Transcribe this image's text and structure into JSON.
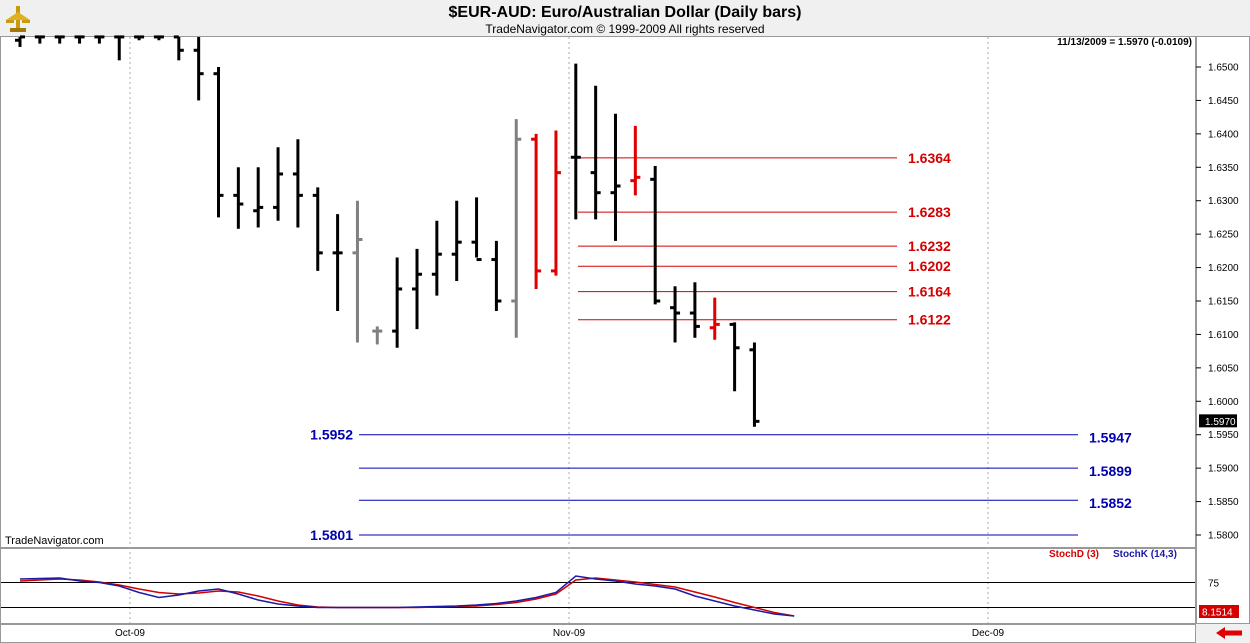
{
  "header": {
    "title": "$EUR-AUD:  Euro/Australian Dollar  (Daily bars)",
    "subtitle": "TradeNavigator.com © 1999-2009 All rights reserved",
    "last_info": "11/13/2009 = 1.5970 (-0.0109)",
    "footer": "TradeNavigator.com"
  },
  "stoch": {
    "d_label": "StochD (3)",
    "k_label": "StochK (14,3)",
    "level_label": "75",
    "last_value": "8.1514",
    "d_color": "#d40000",
    "k_color": "#1a1aa6"
  },
  "colors": {
    "bar_up": "#000000",
    "bar_neutral": "#808080",
    "bar_signal": "#e00000",
    "resistance": "#d40000",
    "support": "#0000b0"
  },
  "chart_data": {
    "type": "ohlc",
    "title": "$EUR-AUD:  Euro/Australian Dollar  (Daily bars)",
    "ylim": [
      1.5765,
      1.6572
    ],
    "y_ticks": [
      "1.6500",
      "1.6450",
      "1.6400",
      "1.6350",
      "1.6300",
      "1.6250",
      "1.6200",
      "1.6150",
      "1.6100",
      "1.6050",
      "1.6000",
      "1.5950",
      "1.5900",
      "1.5850",
      "1.5800"
    ],
    "x_ticks": [
      "Oct-09",
      "Nov-09",
      "Dec-09"
    ],
    "last_price": "1.5970",
    "bars": [
      {
        "i": 0,
        "o": 1.654,
        "h": 1.655,
        "l": 1.653,
        "c": 1.6545,
        "color": "bar_up"
      },
      {
        "i": 1,
        "o": 1.6545,
        "h": 1.6555,
        "l": 1.6535,
        "c": 1.6545,
        "color": "bar_up"
      },
      {
        "i": 2,
        "o": 1.6545,
        "h": 1.6555,
        "l": 1.6535,
        "c": 1.6545,
        "color": "bar_up"
      },
      {
        "i": 3,
        "o": 1.6545,
        "h": 1.6555,
        "l": 1.6535,
        "c": 1.6545,
        "color": "bar_up"
      },
      {
        "i": 4,
        "o": 1.6545,
        "h": 1.6555,
        "l": 1.6535,
        "c": 1.6545,
        "color": "bar_up"
      },
      {
        "i": 5,
        "o": 1.6545,
        "h": 1.656,
        "l": 1.651,
        "c": 1.6545,
        "color": "bar_up"
      },
      {
        "i": 6,
        "o": 1.6545,
        "h": 1.656,
        "l": 1.654,
        "c": 1.6545,
        "color": "bar_up"
      },
      {
        "i": 7,
        "o": 1.6545,
        "h": 1.656,
        "l": 1.654,
        "c": 1.6545,
        "color": "bar_up"
      },
      {
        "i": 8,
        "o": 1.6545,
        "h": 1.656,
        "l": 1.651,
        "c": 1.6525,
        "color": "bar_up"
      },
      {
        "i": 9,
        "o": 1.6525,
        "h": 1.6545,
        "l": 1.645,
        "c": 1.649,
        "color": "bar_up"
      },
      {
        "i": 10,
        "o": 1.649,
        "h": 1.65,
        "l": 1.6275,
        "c": 1.6308,
        "color": "bar_up"
      },
      {
        "i": 11,
        "o": 1.6308,
        "h": 1.635,
        "l": 1.6258,
        "c": 1.6295,
        "color": "bar_up"
      },
      {
        "i": 12,
        "o": 1.6285,
        "h": 1.635,
        "l": 1.626,
        "c": 1.629,
        "color": "bar_up"
      },
      {
        "i": 13,
        "o": 1.629,
        "h": 1.638,
        "l": 1.627,
        "c": 1.634,
        "color": "bar_up"
      },
      {
        "i": 14,
        "o": 1.634,
        "h": 1.6392,
        "l": 1.626,
        "c": 1.6308,
        "color": "bar_up"
      },
      {
        "i": 15,
        "o": 1.6308,
        "h": 1.632,
        "l": 1.6195,
        "c": 1.6222,
        "color": "bar_up"
      },
      {
        "i": 16,
        "o": 1.6222,
        "h": 1.628,
        "l": 1.6135,
        "c": 1.6222,
        "color": "bar_up"
      },
      {
        "i": 17,
        "o": 1.6222,
        "h": 1.63,
        "l": 1.6088,
        "c": 1.6242,
        "color": "bar_neutral"
      },
      {
        "i": 18,
        "o": 1.6105,
        "h": 1.6112,
        "l": 1.6085,
        "c": 1.6105,
        "color": "bar_neutral"
      },
      {
        "i": 19,
        "o": 1.6105,
        "h": 1.6215,
        "l": 1.608,
        "c": 1.6168,
        "color": "bar_up"
      },
      {
        "i": 20,
        "o": 1.6168,
        "h": 1.6228,
        "l": 1.6108,
        "c": 1.619,
        "color": "bar_up"
      },
      {
        "i": 21,
        "o": 1.619,
        "h": 1.627,
        "l": 1.6158,
        "c": 1.622,
        "color": "bar_up"
      },
      {
        "i": 22,
        "o": 1.622,
        "h": 1.63,
        "l": 1.618,
        "c": 1.6238,
        "color": "bar_up"
      },
      {
        "i": 23,
        "o": 1.6238,
        "h": 1.6305,
        "l": 1.6215,
        "c": 1.6212,
        "color": "bar_up"
      },
      {
        "i": 24,
        "o": 1.6212,
        "h": 1.624,
        "l": 1.6135,
        "c": 1.615,
        "color": "bar_up"
      },
      {
        "i": 25,
        "o": 1.615,
        "h": 1.6422,
        "l": 1.6095,
        "c": 1.6392,
        "color": "bar_neutral"
      },
      {
        "i": 26,
        "o": 1.6392,
        "h": 1.64,
        "l": 1.6168,
        "c": 1.6195,
        "color": "bar_signal"
      },
      {
        "i": 27,
        "o": 1.6195,
        "h": 1.6405,
        "l": 1.6188,
        "c": 1.6342,
        "color": "bar_signal"
      },
      {
        "i": 28,
        "o": 1.6365,
        "h": 1.6505,
        "l": 1.6272,
        "c": 1.6365,
        "color": "bar_up"
      },
      {
        "i": 29,
        "o": 1.6342,
        "h": 1.6472,
        "l": 1.6272,
        "c": 1.6312,
        "color": "bar_up"
      },
      {
        "i": 30,
        "o": 1.6312,
        "h": 1.643,
        "l": 1.624,
        "c": 1.6322,
        "color": "bar_up"
      },
      {
        "i": 31,
        "o": 1.633,
        "h": 1.6412,
        "l": 1.6308,
        "c": 1.6335,
        "color": "bar_signal"
      },
      {
        "i": 32,
        "o": 1.6332,
        "h": 1.6352,
        "l": 1.6145,
        "c": 1.615,
        "color": "bar_up"
      },
      {
        "i": 33,
        "o": 1.614,
        "h": 1.6172,
        "l": 1.6088,
        "c": 1.6132,
        "color": "bar_up"
      },
      {
        "i": 34,
        "o": 1.6132,
        "h": 1.6178,
        "l": 1.6095,
        "c": 1.6112,
        "color": "bar_up"
      },
      {
        "i": 35,
        "o": 1.611,
        "h": 1.6155,
        "l": 1.6092,
        "c": 1.6115,
        "color": "bar_signal"
      },
      {
        "i": 36,
        "o": 1.6115,
        "h": 1.6118,
        "l": 1.6015,
        "c": 1.608,
        "color": "bar_up"
      },
      {
        "i": 37,
        "o": 1.6077,
        "h": 1.6088,
        "l": 1.5962,
        "c": 1.597,
        "color": "bar_up"
      }
    ],
    "resistance_levels": [
      "1.6364",
      "1.6283",
      "1.6232",
      "1.6202",
      "1.6164",
      "1.6122"
    ],
    "support_levels_left": [
      "1.5952",
      "1.5801"
    ],
    "support_levels_right": [
      "1.5947",
      "1.5899",
      "1.5852"
    ],
    "stochastic": {
      "ylim": [
        0,
        100
      ],
      "level": 75,
      "k_values": [
        82,
        83,
        84,
        78,
        75,
        68,
        55,
        45,
        50,
        58,
        62,
        52,
        40,
        32,
        28,
        25,
        25,
        25,
        25,
        25,
        26,
        27,
        28,
        30,
        33,
        38,
        45,
        55,
        88,
        82,
        78,
        72,
        68,
        62,
        48,
        38,
        28,
        20,
        12,
        8
      ],
      "d_values": [
        78,
        80,
        82,
        80,
        76,
        70,
        62,
        55,
        52,
        54,
        58,
        56,
        48,
        38,
        30,
        26,
        25,
        25,
        25,
        25,
        25,
        26,
        27,
        28,
        31,
        35,
        42,
        52,
        80,
        84,
        80,
        76,
        71,
        66,
        56,
        46,
        35,
        25,
        15,
        8
      ]
    }
  }
}
